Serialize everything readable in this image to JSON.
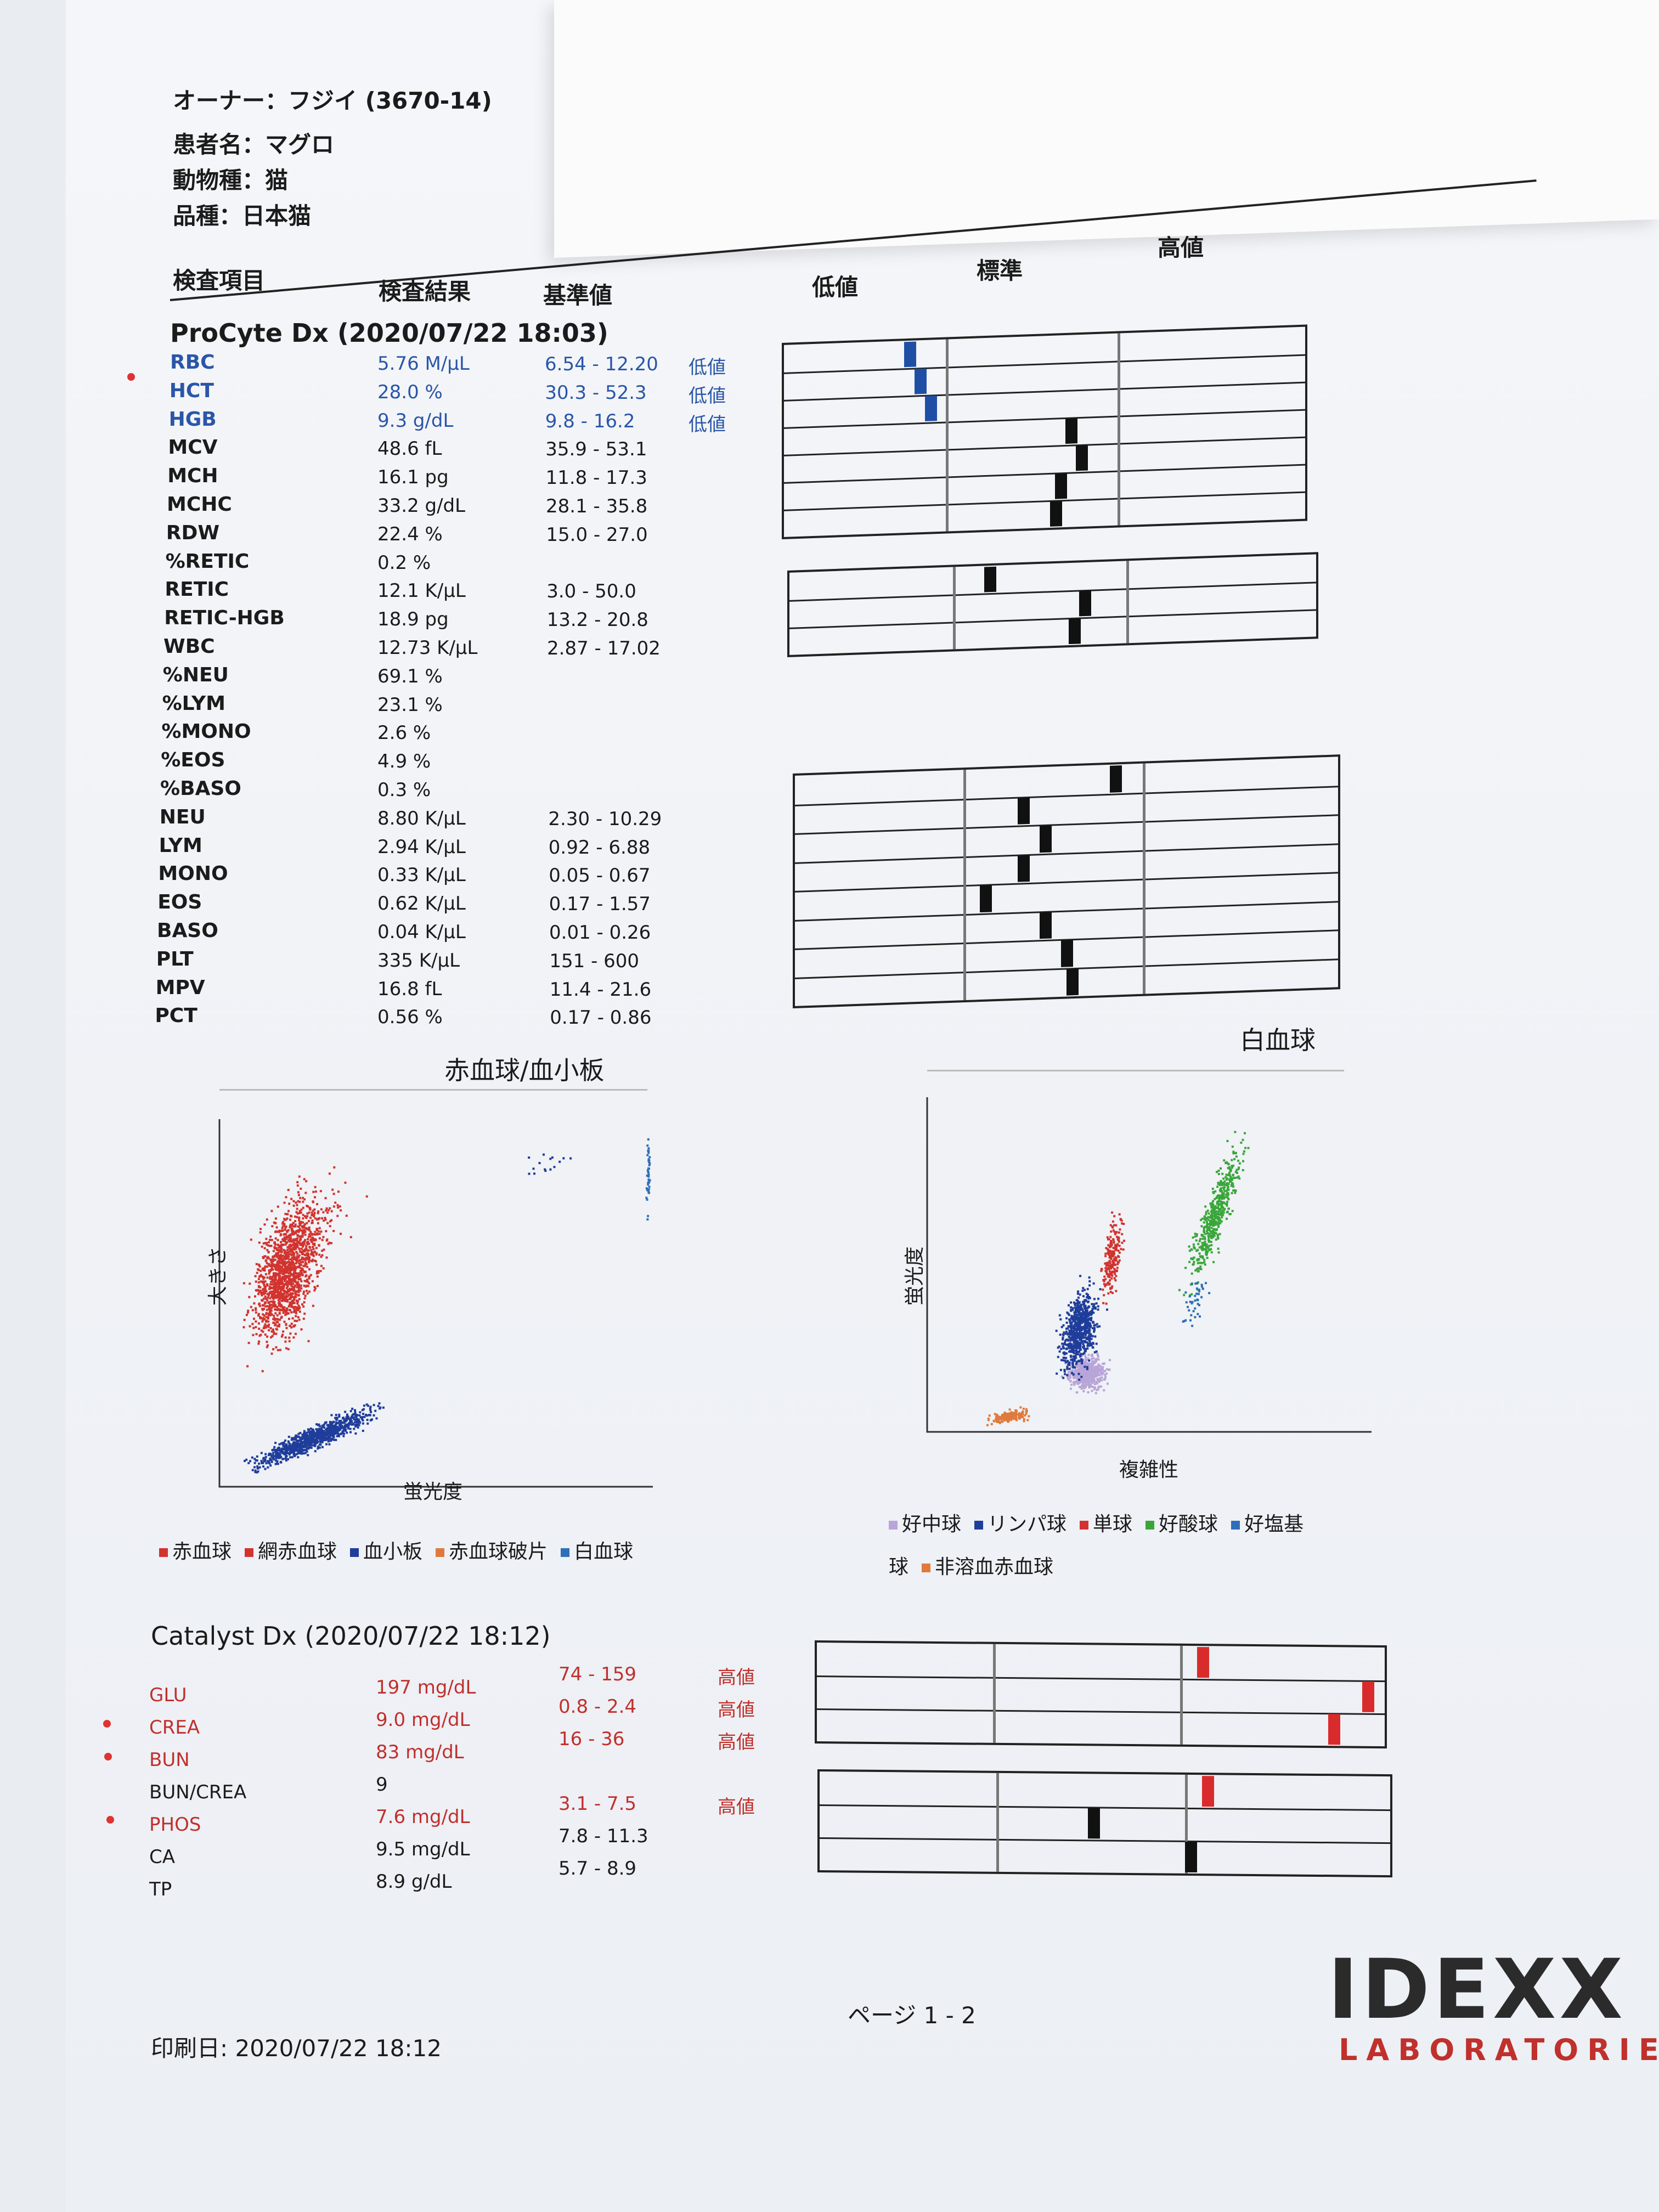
{
  "owner": {
    "label": "オーナー：",
    "value": "フジイ (3670-14)"
  },
  "patient": {
    "label": "患者名：",
    "value": "マグロ"
  },
  "species": {
    "label": "動物種：",
    "value": "猫"
  },
  "breed": {
    "label": "品種：",
    "value": "日本猫"
  },
  "columns": {
    "item": "検査項目",
    "result": "検査結果",
    "ref": "基準値",
    "low": "低値",
    "normal": "標準",
    "high": "高値"
  },
  "procyte": {
    "title": "ProCyte Dx (2020/07/22 18:03)",
    "rows": [
      {
        "name": "RBC",
        "value": "5.76 M/µL",
        "ref": "6.54 - 12.20",
        "flag": "低値"
      },
      {
        "name": "HCT",
        "value": "28.0 %",
        "ref": "30.3 - 52.3",
        "flag": "低値"
      },
      {
        "name": "HGB",
        "value": "9.3 g/dL",
        "ref": "9.8 - 16.2",
        "flag": "低値"
      },
      {
        "name": "MCV",
        "value": "48.6 fL",
        "ref": "35.9 - 53.1",
        "flag": ""
      },
      {
        "name": "MCH",
        "value": "16.1 pg",
        "ref": "11.8 - 17.3",
        "flag": ""
      },
      {
        "name": "MCHC",
        "value": "33.2 g/dL",
        "ref": "28.1 - 35.8",
        "flag": ""
      },
      {
        "name": "RDW",
        "value": "22.4 %",
        "ref": "15.0 - 27.0",
        "flag": ""
      },
      {
        "name": "%RETIC",
        "value": "0.2 %",
        "ref": "",
        "flag": ""
      },
      {
        "name": "RETIC",
        "value": "12.1 K/µL",
        "ref": "3.0 - 50.0",
        "flag": ""
      },
      {
        "name": "RETIC-HGB",
        "value": "18.9 pg",
        "ref": "13.2 - 20.8",
        "flag": ""
      },
      {
        "name": "WBC",
        "value": "12.73 K/µL",
        "ref": "2.87 - 17.02",
        "flag": ""
      },
      {
        "name": "%NEU",
        "value": "69.1 %",
        "ref": "",
        "flag": ""
      },
      {
        "name": "%LYM",
        "value": "23.1 %",
        "ref": "",
        "flag": ""
      },
      {
        "name": "%MONO",
        "value": "2.6 %",
        "ref": "",
        "flag": ""
      },
      {
        "name": "%EOS",
        "value": "4.9 %",
        "ref": "",
        "flag": ""
      },
      {
        "name": "%BASO",
        "value": "0.3 %",
        "ref": "",
        "flag": ""
      },
      {
        "name": "NEU",
        "value": "8.80 K/µL",
        "ref": "2.30 - 10.29",
        "flag": ""
      },
      {
        "name": "LYM",
        "value": "2.94 K/µL",
        "ref": "0.92 - 6.88",
        "flag": ""
      },
      {
        "name": "MONO",
        "value": "0.33 K/µL",
        "ref": "0.05 - 0.67",
        "flag": ""
      },
      {
        "name": "EOS",
        "value": "0.62 K/µL",
        "ref": "0.17 - 1.57",
        "flag": ""
      },
      {
        "name": "BASO",
        "value": "0.04 K/µL",
        "ref": "0.01 - 0.26",
        "flag": ""
      },
      {
        "name": "PLT",
        "value": "335 K/µL",
        "ref": "151 - 600",
        "flag": ""
      },
      {
        "name": "MPV",
        "value": "16.8 fL",
        "ref": "11.4 - 21.6",
        "flag": ""
      },
      {
        "name": "PCT",
        "value": "0.56 %",
        "ref": "0.17 - 0.86",
        "flag": ""
      }
    ]
  },
  "charts": {
    "rbc_title": "赤血球/血小板",
    "rbc_ylabel": "大きさ",
    "rbc_xlabel": "蛍光度",
    "rbc_legend": [
      "赤血球",
      "網赤血球",
      "血小板",
      "赤血球破片",
      "白血球"
    ],
    "wbc_title": "白血球",
    "wbc_ylabel": "蛍光度",
    "wbc_xlabel": "複雑性",
    "wbc_legend": [
      "好中球",
      "リンパ球",
      "単球",
      "好酸球",
      "好塩基球",
      "非溶血赤血球"
    ],
    "colors": {
      "rbc": "#d2332e",
      "retic": "#d2332e",
      "plt": "#1f3d9a",
      "frag": "#e07a3c",
      "wbc": "#2f6fb8",
      "neu": "#b9a5d8",
      "lym": "#1f3d9a",
      "mono": "#d2332e",
      "eos": "#3aa63a",
      "baso": "#2f6fb8",
      "nrbc": "#e07a3c"
    }
  },
  "catalyst": {
    "title": "Catalyst Dx (2020/07/22 18:12)",
    "rows": [
      {
        "name": "GLU",
        "value": "197 mg/dL",
        "ref": "74 - 159",
        "flag": "高値",
        "abn": true
      },
      {
        "name": "CREA",
        "value": "9.0 mg/dL",
        "ref": "0.8 - 2.4",
        "flag": "高値",
        "abn": true
      },
      {
        "name": "BUN",
        "value": "83 mg/dL",
        "ref": "16 - 36",
        "flag": "高値",
        "abn": true
      },
      {
        "name": "BUN/CREA",
        "value": "9",
        "ref": "",
        "flag": "",
        "abn": false
      },
      {
        "name": "PHOS",
        "value": "7.6 mg/dL",
        "ref": "3.1 - 7.5",
        "flag": "高値",
        "abn": true
      },
      {
        "name": "CA",
        "value": "9.5 mg/dL",
        "ref": "7.8 - 11.3",
        "flag": "",
        "abn": false
      },
      {
        "name": "TP",
        "value": "8.9 g/dL",
        "ref": "5.7 - 8.9",
        "flag": "",
        "abn": false
      }
    ]
  },
  "footer": {
    "page": "ページ 1 - 2",
    "printed": "印刷日: 2020/07/22 18:12",
    "logo_main": "IDEXX",
    "logo_sub": "LABORATORIES"
  }
}
